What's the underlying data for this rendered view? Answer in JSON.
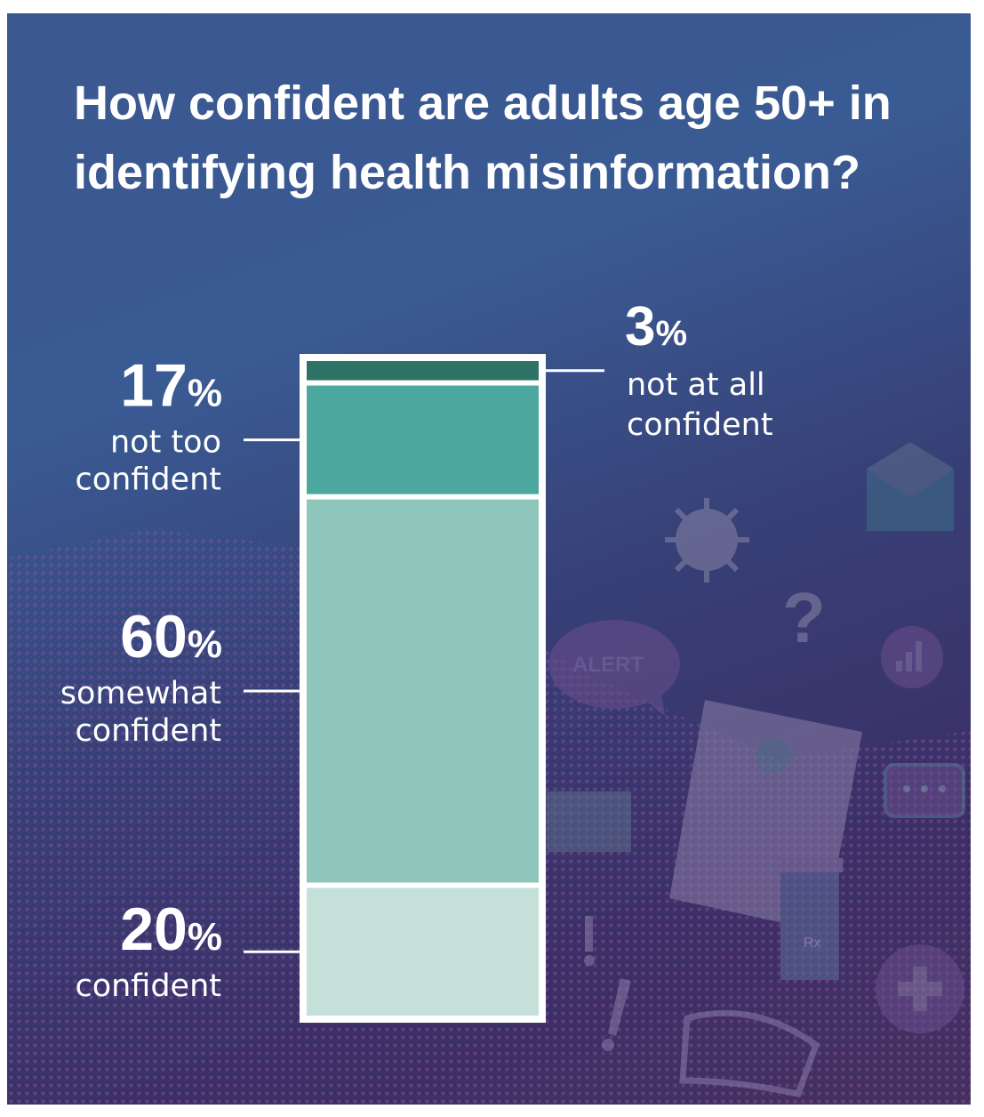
{
  "chart_data": {
    "type": "stacked-bar",
    "title": "How confident are adults age 50+ in identifying health misinformation?",
    "series": [
      {
        "name": "not at all confident",
        "value": 3,
        "color": "#2f7266"
      },
      {
        "name": "not too confident",
        "value": 17,
        "color": "#4ca89e"
      },
      {
        "name": "somewhat confident",
        "value": 60,
        "color": "#8fc6bb"
      },
      {
        "name": "confident",
        "value": 20,
        "color": "#c4e0d8"
      }
    ],
    "labels": [
      {
        "number": "3",
        "unit": "%",
        "lines": [
          "not at all",
          "confident"
        ]
      },
      {
        "number": "17",
        "unit": "%",
        "lines": [
          "not too",
          "confident"
        ]
      },
      {
        "number": "60",
        "unit": "%",
        "lines": [
          "somewhat",
          "confident"
        ]
      },
      {
        "number": "20",
        "unit": "%",
        "lines": [
          "confident"
        ]
      }
    ]
  },
  "decorations": {
    "alert_text": "ALERT",
    "rx_text": "Rx",
    "icons": [
      "envelope-icon",
      "virus-icon",
      "question-mark-icon",
      "alert-bubble-icon",
      "bar-chart-icon",
      "document-icon",
      "chat-bubble-icon",
      "pill-bottle-icon",
      "plus-icon",
      "mask-icon",
      "exclamation-icon"
    ]
  }
}
